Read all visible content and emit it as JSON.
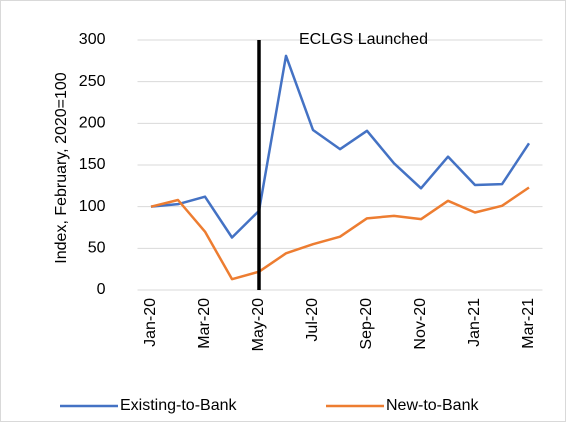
{
  "chart_data": {
    "type": "line",
    "y_label": "Index, February, 2020=100",
    "categories": [
      "Jan-20",
      null,
      "Mar-20",
      null,
      "May-20",
      null,
      "Jul-20",
      null,
      "Sep-20",
      null,
      "Nov-20",
      null,
      "Jan-21",
      null,
      "Mar-21"
    ],
    "series": [
      {
        "name": "Existing-to-Bank",
        "color": "#4472c4",
        "values": [
          100,
          103,
          112,
          63,
          95,
          281,
          192,
          169,
          191,
          152,
          122,
          160,
          126,
          127,
          176
        ]
      },
      {
        "name": "New-to-Bank",
        "color": "#ed7d31",
        "values": [
          100,
          108,
          70,
          13,
          22,
          44,
          55,
          64,
          86,
          89,
          85,
          107,
          93,
          101,
          123
        ]
      }
    ],
    "annotation": {
      "label": "ECLGS Launched",
      "x": "May-20",
      "color": "#000000"
    },
    "ylim": [
      0,
      300
    ],
    "yticks": [
      0,
      50,
      100,
      150,
      200,
      250,
      300
    ],
    "grid": true,
    "legend": "bottom"
  }
}
